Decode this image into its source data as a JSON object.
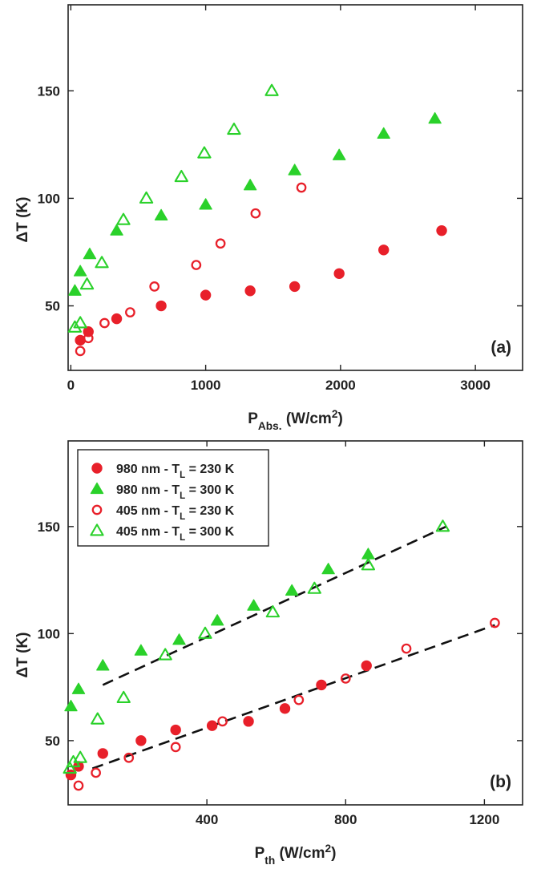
{
  "colors": {
    "red": "#e8202a",
    "green": "#2ad12a",
    "axis": "#222222"
  },
  "chart_data": [
    {
      "panel": "(a)",
      "type": "scatter",
      "xlabel": {
        "main": "P",
        "sub": "Abs.",
        "unit": " (W/cm",
        "sup": "2",
        "close": ")"
      },
      "ylabel": "ΔT (K)",
      "xlim": [
        -20,
        3350
      ],
      "ylim": [
        20,
        190
      ],
      "xticks": [
        0,
        1000,
        2000,
        3000
      ],
      "xtick_labels": [
        "0",
        "1000",
        "2000",
        "3000"
      ],
      "yticks": [
        50,
        100,
        150
      ],
      "ytick_labels": [
        "50",
        "100",
        "150"
      ],
      "grid": false,
      "legend": null,
      "series": [
        {
          "name": "980 nm - TL = 230 K",
          "marker": "circle-filled",
          "color": "#e8202a",
          "x": [
            70,
            130,
            340,
            670,
            1000,
            1330,
            1660,
            1990,
            2320,
            2750
          ],
          "y": [
            34,
            38,
            44,
            50,
            55,
            57,
            59,
            65,
            76,
            85
          ]
        },
        {
          "name": "980 nm - TL = 300 K",
          "marker": "triangle-filled",
          "color": "#2ad12a",
          "x": [
            30,
            70,
            140,
            340,
            670,
            1000,
            1330,
            1660,
            1990,
            2320,
            2700
          ],
          "y": [
            57,
            66,
            74,
            85,
            92,
            97,
            106,
            113,
            120,
            130,
            137
          ]
        },
        {
          "name": "405 nm - TL = 230 K",
          "marker": "circle-open",
          "color": "#e8202a",
          "x": [
            70,
            130,
            250,
            440,
            620,
            930,
            1110,
            1370,
            1710
          ],
          "y": [
            29,
            35,
            42,
            47,
            59,
            69,
            79,
            93,
            105
          ]
        },
        {
          "name": "405 nm - TL = 300 K",
          "marker": "triangle-open",
          "color": "#2ad12a",
          "x": [
            30,
            70,
            120,
            230,
            390,
            560,
            820,
            990,
            1210,
            1490
          ],
          "y": [
            40,
            42,
            60,
            70,
            90,
            100,
            110,
            121,
            132,
            150
          ]
        }
      ]
    },
    {
      "panel": "(b)",
      "type": "scatter",
      "xlabel": {
        "main": "P",
        "sub": "th",
        "unit": " (W/cm",
        "sup": "2",
        "close": ")"
      },
      "ylabel": "ΔT (K)",
      "xlim": [
        0,
        1310
      ],
      "ylim": [
        20,
        190
      ],
      "xticks": [
        400,
        800,
        1200
      ],
      "xtick_labels": [
        "400",
        "800",
        "1200"
      ],
      "yticks": [
        50,
        100,
        150
      ],
      "ytick_labels": [
        "50",
        "100",
        "150"
      ],
      "grid": false,
      "legend": {
        "placement": "top-left",
        "entries": [
          {
            "pre": "980 nm - T",
            "sub": "L",
            "post": " = 230 K",
            "series": 0
          },
          {
            "pre": "980 nm - T",
            "sub": "L",
            "post": " = 300 K",
            "series": 1
          },
          {
            "pre": "405 nm - T",
            "sub": "L",
            "post": " = 230 K",
            "series": 2
          },
          {
            "pre": "405 nm - T",
            "sub": "L",
            "post": " = 300 K",
            "series": 3
          }
        ]
      },
      "series": [
        {
          "name": "980 nm - TL = 230 K",
          "marker": "circle-filled",
          "color": "#e8202a",
          "x": [
            8,
            30,
            100,
            210,
            310,
            415,
            520,
            625,
            730,
            860
          ],
          "y": [
            34,
            38,
            44,
            50,
            55,
            57,
            59,
            65,
            76,
            85
          ]
        },
        {
          "name": "980 nm - TL = 300 K",
          "marker": "triangle-filled",
          "color": "#2ad12a",
          "x": [
            8,
            30,
            100,
            210,
            320,
            430,
            535,
            645,
            750,
            865
          ],
          "y": [
            66,
            74,
            85,
            92,
            97,
            106,
            113,
            120,
            130,
            137
          ]
        },
        {
          "name": "405 nm - TL = 230 K",
          "marker": "circle-open",
          "color": "#e8202a",
          "x": [
            30,
            80,
            175,
            310,
            445,
            665,
            800,
            975,
            1230
          ],
          "y": [
            29,
            35,
            42,
            47,
            59,
            69,
            79,
            93,
            105
          ]
        },
        {
          "name": "405 nm - TL = 300 K",
          "marker": "triangle-open",
          "color": "#2ad12a",
          "x": [
            5,
            15,
            35,
            85,
            160,
            280,
            395,
            590,
            710,
            865,
            1080
          ],
          "y": [
            37,
            40,
            42,
            60,
            70,
            90,
            100,
            110,
            121,
            132,
            150
          ]
        }
      ],
      "fit_lines": [
        {
          "x": [
            100,
            1090
          ],
          "y": [
            76,
            150
          ]
        },
        {
          "x": [
            70,
            1230
          ],
          "y": [
            37,
            104
          ]
        }
      ]
    }
  ]
}
